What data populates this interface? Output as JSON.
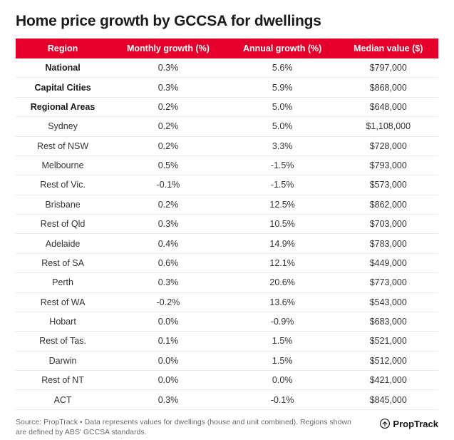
{
  "title": "Home price growth by GCCSA for dwellings",
  "table": {
    "type": "table",
    "header_bg": "#e4002b",
    "header_fg": "#ffffff",
    "row_border": "#ececec",
    "font_size": 12.5,
    "columns": [
      "Region",
      "Monthly growth (%)",
      "Annual growth (%)",
      "Median value ($)"
    ],
    "rows": [
      {
        "bold": true,
        "c": [
          "National",
          "0.3%",
          "5.6%",
          "$797,000"
        ]
      },
      {
        "bold": true,
        "c": [
          "Capital Cities",
          "0.3%",
          "5.9%",
          "$868,000"
        ]
      },
      {
        "bold": true,
        "c": [
          "Regional Areas",
          "0.2%",
          "5.0%",
          "$648,000"
        ]
      },
      {
        "bold": false,
        "c": [
          "Sydney",
          "0.2%",
          "5.0%",
          "$1,108,000"
        ]
      },
      {
        "bold": false,
        "c": [
          "Rest of NSW",
          "0.2%",
          "3.3%",
          "$728,000"
        ]
      },
      {
        "bold": false,
        "c": [
          "Melbourne",
          "0.5%",
          "-1.5%",
          "$793,000"
        ]
      },
      {
        "bold": false,
        "c": [
          "Rest of Vic.",
          "-0.1%",
          "-1.5%",
          "$573,000"
        ]
      },
      {
        "bold": false,
        "c": [
          "Brisbane",
          "0.2%",
          "12.5%",
          "$862,000"
        ]
      },
      {
        "bold": false,
        "c": [
          "Rest of Qld",
          "0.3%",
          "10.5%",
          "$703,000"
        ]
      },
      {
        "bold": false,
        "c": [
          "Adelaide",
          "0.4%",
          "14.9%",
          "$783,000"
        ]
      },
      {
        "bold": false,
        "c": [
          "Rest of SA",
          "0.6%",
          "12.1%",
          "$449,000"
        ]
      },
      {
        "bold": false,
        "c": [
          "Perth",
          "0.3%",
          "20.6%",
          "$773,000"
        ]
      },
      {
        "bold": false,
        "c": [
          "Rest of WA",
          "-0.2%",
          "13.6%",
          "$543,000"
        ]
      },
      {
        "bold": false,
        "c": [
          "Hobart",
          "0.0%",
          "-0.9%",
          "$683,000"
        ]
      },
      {
        "bold": false,
        "c": [
          "Rest of Tas.",
          "0.1%",
          "1.5%",
          "$521,000"
        ]
      },
      {
        "bold": false,
        "c": [
          "Darwin",
          "0.0%",
          "1.5%",
          "$512,000"
        ]
      },
      {
        "bold": false,
        "c": [
          "Rest of NT",
          "0.0%",
          "0.0%",
          "$421,000"
        ]
      },
      {
        "bold": false,
        "c": [
          "ACT",
          "0.3%",
          "-0.1%",
          "$845,000"
        ]
      }
    ]
  },
  "source": "Source: PropTrack • Data represents values for dwellings (house and unit combined). Regions shown are defined by ABS' GCCSA standards.",
  "brand": {
    "name": "PropTrack",
    "icon_color": "#1a1a1a"
  }
}
